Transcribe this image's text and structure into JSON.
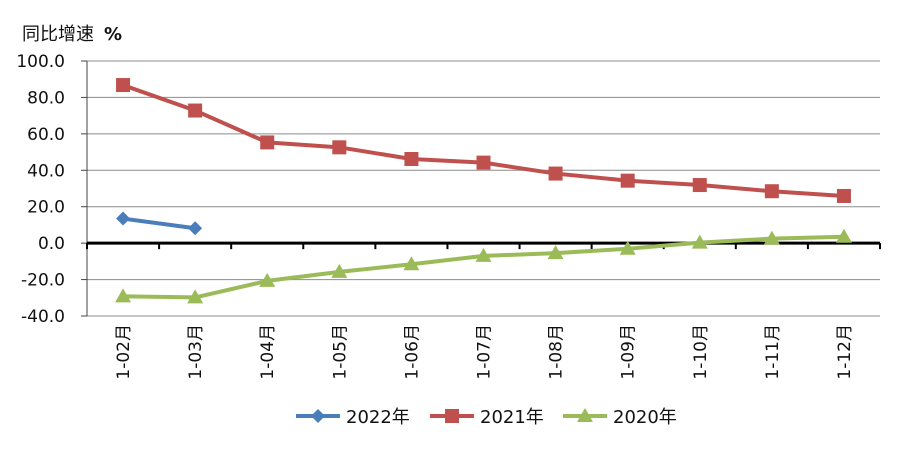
{
  "chart_data": {
    "type": "line",
    "ylabel": "同比增速",
    "yunit": "%",
    "categories": [
      "1-02月",
      "1-03月",
      "1-04月",
      "1-05月",
      "1-06月",
      "1-07月",
      "1-08月",
      "1-09月",
      "1-10月",
      "1-11月",
      "1-12月"
    ],
    "ylim": [
      -40,
      100
    ],
    "yticks": [
      "100.0",
      "80.0",
      "60.0",
      "40.0",
      "20.0",
      "0.0",
      "-20.0",
      "-40.0"
    ],
    "grid": true,
    "legend": "bottom",
    "series": [
      {
        "name": "2022年",
        "color": "#4a7ebb",
        "marker": "diamond",
        "values": [
          13.5,
          8.2,
          null,
          null,
          null,
          null,
          null,
          null,
          null,
          null,
          null
        ]
      },
      {
        "name": "2021年",
        "color": "#c0504d",
        "marker": "square",
        "values": [
          86.8,
          72.8,
          55.3,
          52.6,
          46.2,
          44.2,
          38.2,
          34.3,
          31.9,
          28.5,
          25.9
        ]
      },
      {
        "name": "2020年",
        "color": "#9bbb59",
        "marker": "triangle",
        "values": [
          -29.2,
          -29.8,
          -20.7,
          -15.8,
          -11.6,
          -7.0,
          -5.5,
          -3.1,
          0.3,
          2.5,
          3.5
        ]
      }
    ]
  }
}
